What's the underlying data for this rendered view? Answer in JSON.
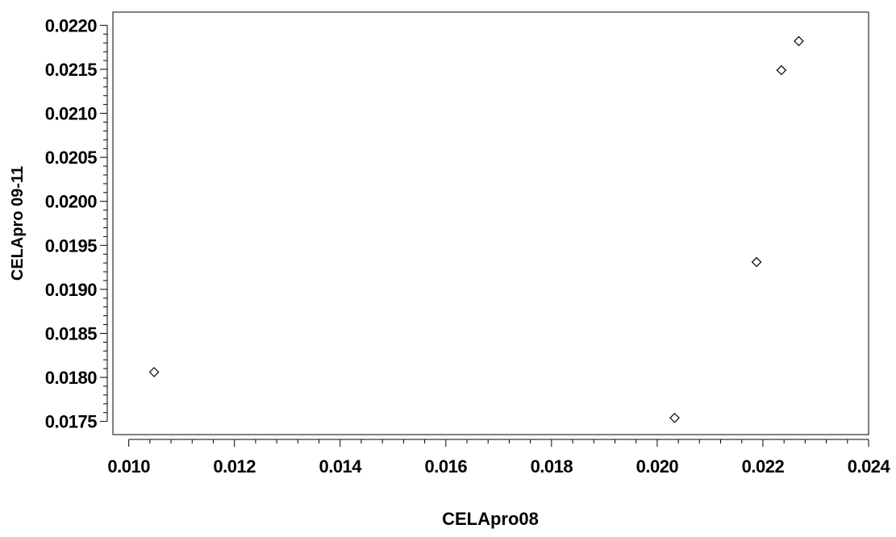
{
  "chart_data": {
    "type": "scatter",
    "xlabel": "CELApro08",
    "ylabel": "CELApro 09-11",
    "xlim": [
      0.0097,
      0.024
    ],
    "ylim": [
      0.01735,
      0.02215
    ],
    "x_ticks": [
      "0.010",
      "0.012",
      "0.014",
      "0.016",
      "0.018",
      "0.020",
      "0.022",
      "0.024"
    ],
    "y_ticks": [
      "0.0175",
      "0.0180",
      "0.0185",
      "0.0190",
      "0.0195",
      "0.0200",
      "0.0205",
      "0.0210",
      "0.0215",
      "0.0220"
    ],
    "x_minor_per_major": 5,
    "y_minor_per_major": 5,
    "marker": "diamond-open",
    "marker_color": "#000000",
    "grid": false,
    "legend": "none",
    "points": [
      {
        "x": 0.01048,
        "y": 0.01806
      },
      {
        "x": 0.02033,
        "y": 0.01754
      },
      {
        "x": 0.02188,
        "y": 0.01931
      },
      {
        "x": 0.02235,
        "y": 0.02149
      },
      {
        "x": 0.02268,
        "y": 0.02182
      }
    ]
  }
}
